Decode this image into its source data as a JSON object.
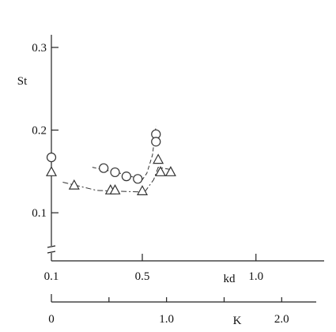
{
  "chart_data": {
    "type": "scatter",
    "y_axis": {
      "label": "St",
      "range": [
        0.06,
        0.3
      ],
      "ticks": [
        0.1,
        0.2,
        0.3
      ],
      "tick_labels": [
        "0.1",
        "0.2",
        "0.3"
      ],
      "axis_break": true
    },
    "x_axis_kd": {
      "label": "kd",
      "range": [
        0.1,
        1.3
      ],
      "ticks": [
        0.1,
        0.5,
        1.0
      ],
      "tick_labels": [
        "0.1",
        "0.5",
        "1.0"
      ]
    },
    "x_axis_K": {
      "label": "K",
      "range": [
        0,
        2.3
      ],
      "ticks": [
        0,
        0.5,
        1.0,
        1.5,
        2.0
      ],
      "tick_labels": [
        "0",
        "",
        "1.0",
        "",
        "2.0"
      ]
    },
    "series": [
      {
        "marker": "circle",
        "line": "dashed",
        "points": [
          {
            "x": 0.1,
            "y": 0.167
          },
          {
            "x": 0.33,
            "y": 0.154
          },
          {
            "x": 0.38,
            "y": 0.149
          },
          {
            "x": 0.43,
            "y": 0.144
          },
          {
            "x": 0.48,
            "y": 0.141
          },
          {
            "x": 0.56,
            "y": 0.195
          },
          {
            "x": 0.56,
            "y": 0.186
          }
        ],
        "curve": [
          {
            "x": 0.28,
            "y": 0.155
          },
          {
            "x": 0.4,
            "y": 0.148
          },
          {
            "x": 0.5,
            "y": 0.14
          },
          {
            "x": 0.52,
            "y": 0.148
          },
          {
            "x": 0.545,
            "y": 0.17
          },
          {
            "x": 0.56,
            "y": 0.205
          }
        ]
      },
      {
        "marker": "triangle",
        "line": "dash-dot",
        "points": [
          {
            "x": 0.1,
            "y": 0.149
          },
          {
            "x": 0.2,
            "y": 0.133
          },
          {
            "x": 0.36,
            "y": 0.127
          },
          {
            "x": 0.38,
            "y": 0.127
          },
          {
            "x": 0.5,
            "y": 0.126
          },
          {
            "x": 0.57,
            "y": 0.164
          },
          {
            "x": 0.58,
            "y": 0.149
          },
          {
            "x": 0.625,
            "y": 0.149
          }
        ],
        "curve": [
          {
            "x": 0.15,
            "y": 0.137
          },
          {
            "x": 0.3,
            "y": 0.127
          },
          {
            "x": 0.51,
            "y": 0.125
          },
          {
            "x": 0.55,
            "y": 0.14
          },
          {
            "x": 0.57,
            "y": 0.155
          },
          {
            "x": 0.63,
            "y": 0.152
          }
        ]
      }
    ]
  }
}
